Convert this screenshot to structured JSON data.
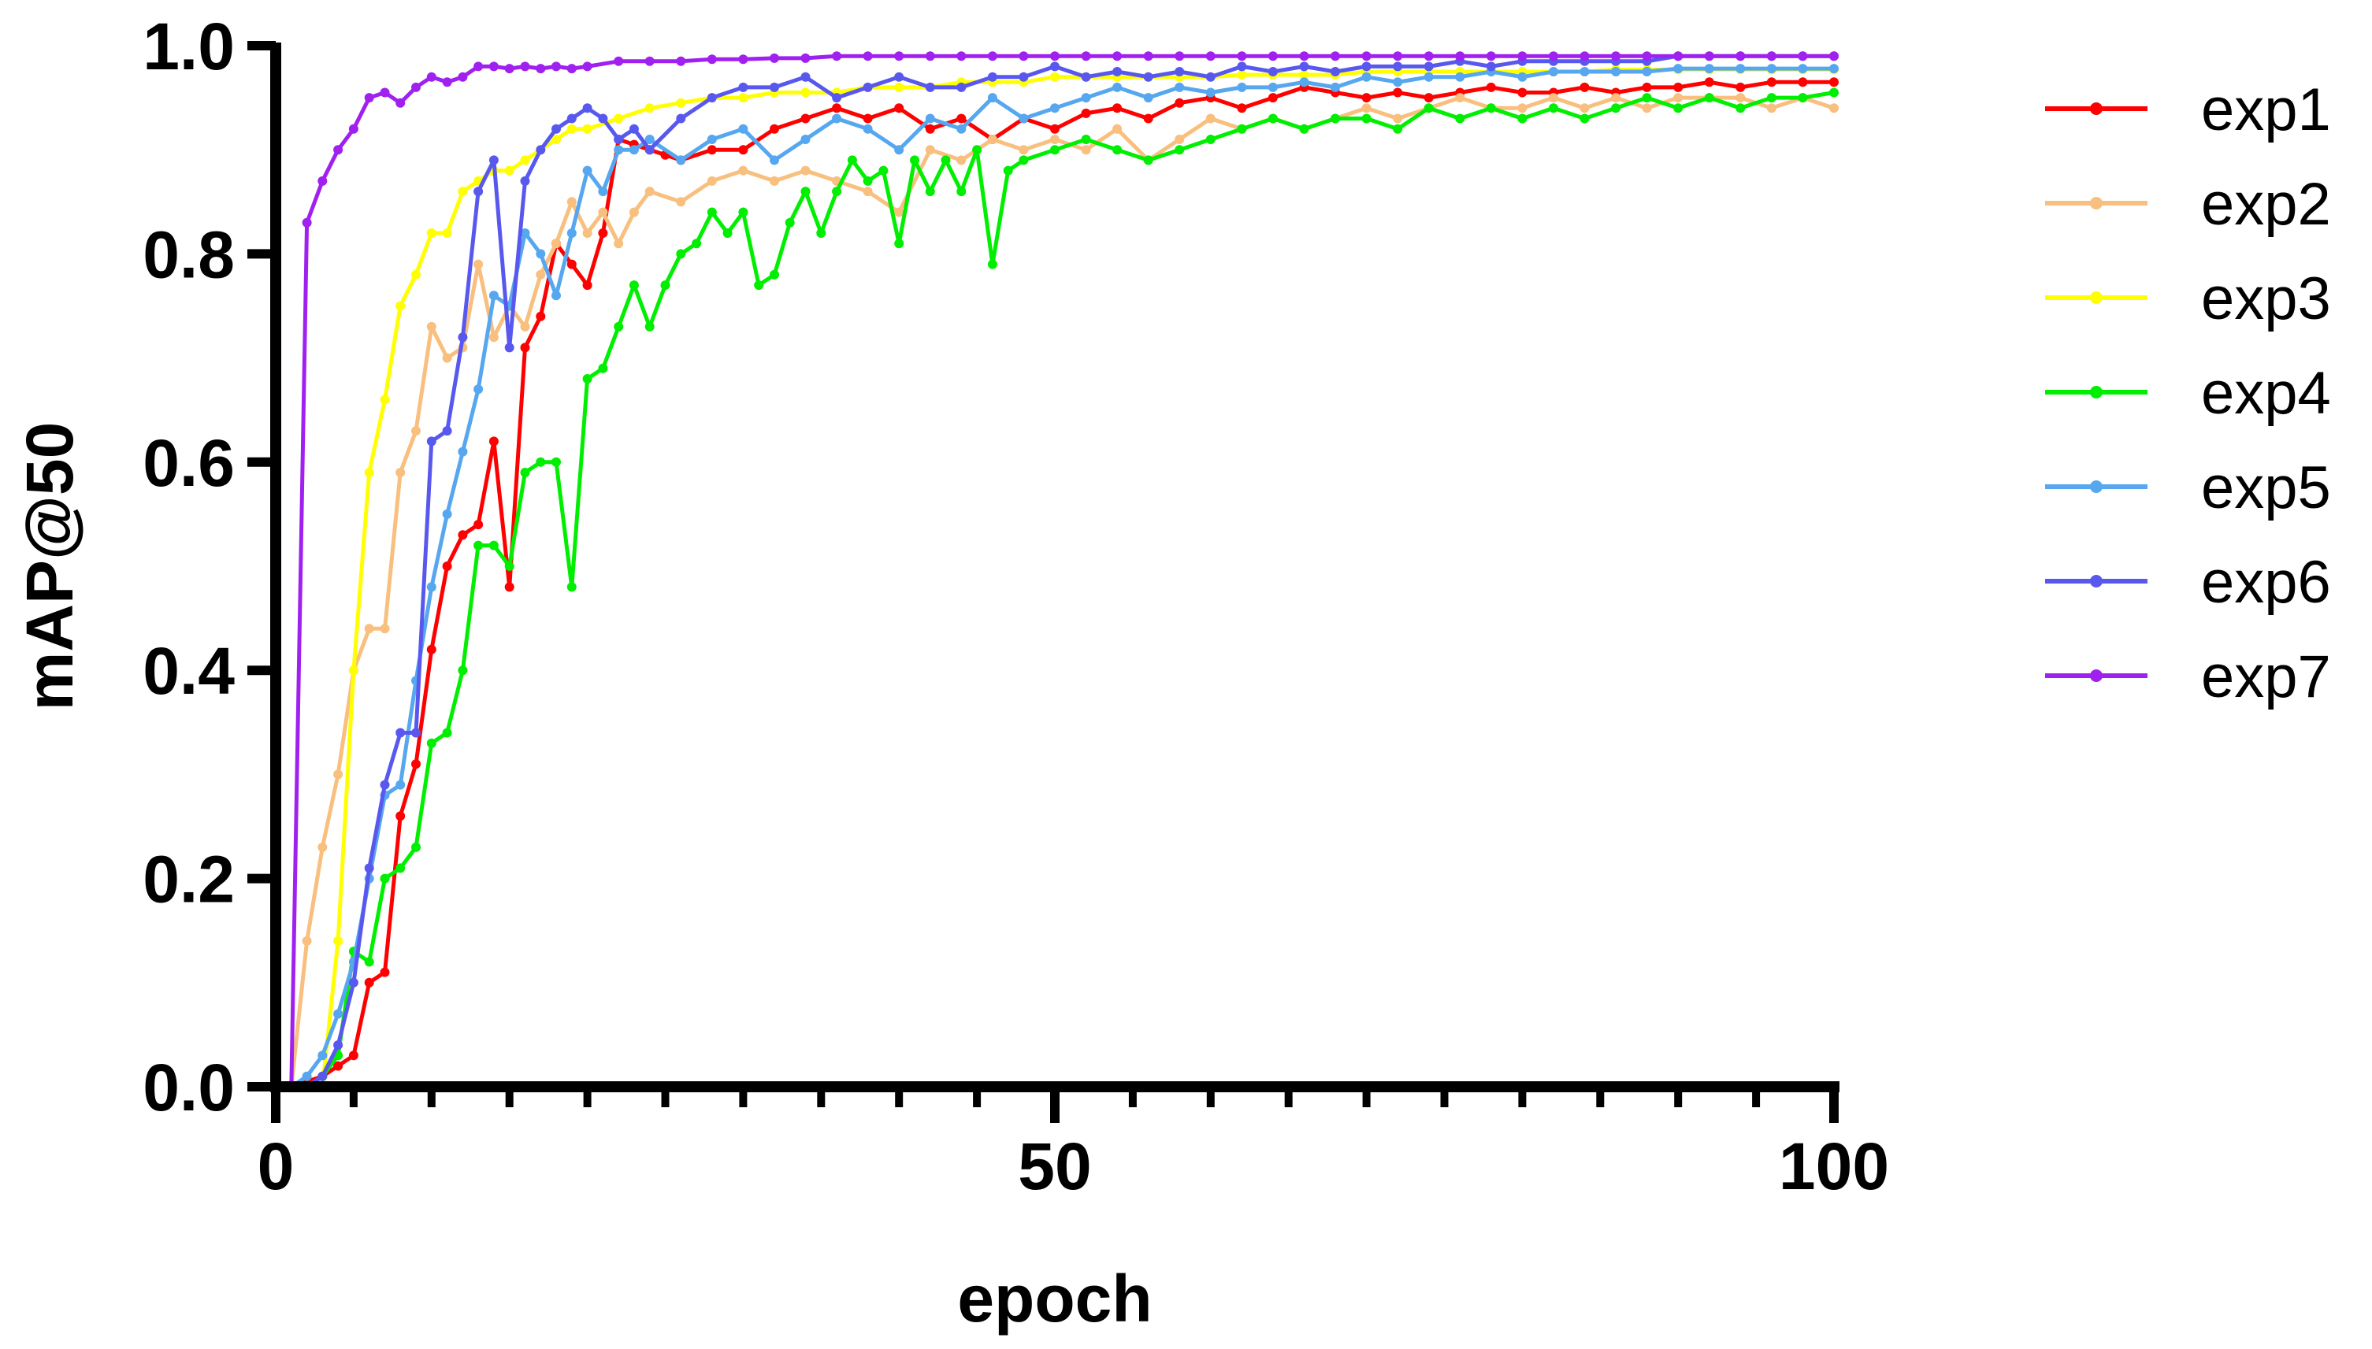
{
  "chart_data": {
    "type": "line",
    "title": "",
    "xlabel": "epoch",
    "ylabel": "mAP@50",
    "xlim": [
      0,
      100
    ],
    "ylim": [
      0,
      1.0
    ],
    "x_ticks": [
      0,
      50,
      100
    ],
    "x_tick_labels": [
      "0",
      "50",
      "100"
    ],
    "y_ticks": [
      0,
      0.2,
      0.4,
      0.6,
      0.8,
      1.0
    ],
    "y_tick_labels": [
      "0.0",
      "0.2",
      "0.4",
      "0.6",
      "0.8",
      "1.0"
    ],
    "grid": false,
    "legend_position": "right",
    "series": [
      {
        "name": "exp1",
        "color": "#ff0000",
        "x": [
          1,
          2,
          3,
          4,
          5,
          6,
          7,
          8,
          9,
          10,
          11,
          12,
          13,
          14,
          15,
          16,
          17,
          18,
          19,
          20,
          21,
          22,
          23,
          24,
          25,
          26,
          28,
          30,
          32,
          34,
          36,
          38,
          40,
          42,
          44,
          46,
          48,
          50,
          52,
          54,
          56,
          58,
          60,
          62,
          64,
          66,
          68,
          70,
          72,
          74,
          76,
          78,
          80,
          82,
          84,
          86,
          88,
          90,
          92,
          94,
          96,
          98,
          100
        ],
        "values": [
          0.0,
          0.005,
          0.01,
          0.02,
          0.03,
          0.1,
          0.11,
          0.26,
          0.31,
          0.42,
          0.5,
          0.53,
          0.54,
          0.62,
          0.48,
          0.71,
          0.74,
          0.81,
          0.79,
          0.77,
          0.82,
          0.91,
          0.905,
          0.9,
          0.895,
          0.89,
          0.9,
          0.9,
          0.92,
          0.93,
          0.94,
          0.93,
          0.94,
          0.92,
          0.93,
          0.91,
          0.93,
          0.92,
          0.935,
          0.94,
          0.93,
          0.945,
          0.95,
          0.94,
          0.95,
          0.96,
          0.955,
          0.95,
          0.955,
          0.95,
          0.955,
          0.96,
          0.955,
          0.955,
          0.96,
          0.955,
          0.96,
          0.96,
          0.965,
          0.96,
          0.965,
          0.965,
          0.965
        ]
      },
      {
        "name": "exp2",
        "color": "#f8bf7f",
        "x": [
          1,
          2,
          3,
          4,
          5,
          6,
          7,
          8,
          9,
          10,
          11,
          12,
          13,
          14,
          15,
          16,
          17,
          18,
          19,
          20,
          21,
          22,
          23,
          24,
          26,
          28,
          30,
          32,
          34,
          36,
          38,
          40,
          42,
          44,
          46,
          48,
          50,
          52,
          54,
          56,
          58,
          60,
          62,
          64,
          66,
          68,
          70,
          72,
          74,
          76,
          78,
          80,
          82,
          84,
          86,
          88,
          90,
          92,
          94,
          96,
          98,
          100
        ],
        "values": [
          0.0,
          0.14,
          0.23,
          0.3,
          0.4,
          0.44,
          0.44,
          0.59,
          0.63,
          0.73,
          0.7,
          0.71,
          0.79,
          0.72,
          0.75,
          0.73,
          0.78,
          0.81,
          0.85,
          0.82,
          0.84,
          0.81,
          0.84,
          0.86,
          0.85,
          0.87,
          0.88,
          0.87,
          0.88,
          0.87,
          0.86,
          0.84,
          0.9,
          0.89,
          0.91,
          0.9,
          0.91,
          0.9,
          0.92,
          0.89,
          0.91,
          0.93,
          0.92,
          0.93,
          0.92,
          0.93,
          0.94,
          0.93,
          0.94,
          0.95,
          0.94,
          0.94,
          0.95,
          0.94,
          0.95,
          0.94,
          0.95,
          0.95,
          0.95,
          0.94,
          0.95,
          0.94
        ]
      },
      {
        "name": "exp3",
        "color": "#ffff00",
        "x": [
          1,
          2,
          3,
          4,
          5,
          6,
          7,
          8,
          9,
          10,
          11,
          12,
          13,
          14,
          15,
          16,
          17,
          18,
          19,
          20,
          22,
          24,
          26,
          28,
          30,
          32,
          34,
          36,
          38,
          40,
          42,
          44,
          46,
          48,
          50,
          52,
          54,
          56,
          58,
          60,
          62,
          64,
          66,
          68,
          70,
          72,
          74,
          76,
          78,
          80,
          82,
          84,
          86,
          88,
          90,
          92,
          94,
          96,
          98,
          100
        ],
        "values": [
          0.0,
          0.0,
          0.0,
          0.14,
          0.4,
          0.59,
          0.66,
          0.75,
          0.78,
          0.82,
          0.82,
          0.86,
          0.87,
          0.88,
          0.88,
          0.89,
          0.9,
          0.91,
          0.92,
          0.92,
          0.93,
          0.94,
          0.945,
          0.95,
          0.95,
          0.955,
          0.955,
          0.955,
          0.96,
          0.96,
          0.96,
          0.965,
          0.965,
          0.965,
          0.97,
          0.97,
          0.97,
          0.97,
          0.97,
          0.97,
          0.972,
          0.972,
          0.972,
          0.972,
          0.975,
          0.975,
          0.975,
          0.975,
          0.975,
          0.975,
          0.975,
          0.975,
          0.977,
          0.977,
          0.977,
          0.977,
          0.977,
          0.977,
          0.977,
          0.977
        ]
      },
      {
        "name": "exp4",
        "color": "#00ee00",
        "x": [
          1,
          2,
          3,
          4,
          5,
          6,
          7,
          8,
          9,
          10,
          11,
          12,
          13,
          14,
          15,
          16,
          17,
          18,
          19,
          20,
          21,
          22,
          23,
          24,
          25,
          26,
          27,
          28,
          29,
          30,
          31,
          32,
          33,
          34,
          35,
          36,
          37,
          38,
          39,
          40,
          41,
          42,
          43,
          44,
          45,
          46,
          47,
          48,
          50,
          52,
          54,
          56,
          58,
          60,
          62,
          64,
          66,
          68,
          70,
          72,
          74,
          76,
          78,
          80,
          82,
          84,
          86,
          88,
          90,
          92,
          94,
          96,
          98,
          100
        ],
        "values": [
          0.0,
          0.0,
          0.01,
          0.03,
          0.13,
          0.12,
          0.2,
          0.21,
          0.23,
          0.33,
          0.34,
          0.4,
          0.52,
          0.52,
          0.5,
          0.59,
          0.6,
          0.6,
          0.48,
          0.68,
          0.69,
          0.73,
          0.77,
          0.73,
          0.77,
          0.8,
          0.81,
          0.84,
          0.82,
          0.84,
          0.77,
          0.78,
          0.83,
          0.86,
          0.82,
          0.86,
          0.89,
          0.87,
          0.88,
          0.81,
          0.89,
          0.86,
          0.89,
          0.86,
          0.9,
          0.79,
          0.88,
          0.89,
          0.9,
          0.91,
          0.9,
          0.89,
          0.9,
          0.91,
          0.92,
          0.93,
          0.92,
          0.93,
          0.93,
          0.92,
          0.94,
          0.93,
          0.94,
          0.93,
          0.94,
          0.93,
          0.94,
          0.95,
          0.94,
          0.95,
          0.94,
          0.95,
          0.95,
          0.955
        ]
      },
      {
        "name": "exp5",
        "color": "#56a7ef",
        "x": [
          1,
          2,
          3,
          4,
          5,
          6,
          7,
          8,
          9,
          10,
          11,
          12,
          13,
          14,
          15,
          16,
          17,
          18,
          19,
          20,
          21,
          22,
          23,
          24,
          26,
          28,
          30,
          32,
          34,
          36,
          38,
          40,
          42,
          44,
          46,
          48,
          50,
          52,
          54,
          56,
          58,
          60,
          62,
          64,
          66,
          68,
          70,
          72,
          74,
          76,
          78,
          80,
          82,
          84,
          86,
          88,
          90,
          92,
          94,
          96,
          98,
          100
        ],
        "values": [
          0.0,
          0.01,
          0.03,
          0.07,
          0.12,
          0.2,
          0.28,
          0.29,
          0.39,
          0.48,
          0.55,
          0.61,
          0.67,
          0.76,
          0.75,
          0.82,
          0.8,
          0.76,
          0.82,
          0.88,
          0.86,
          0.9,
          0.9,
          0.91,
          0.89,
          0.91,
          0.92,
          0.89,
          0.91,
          0.93,
          0.92,
          0.9,
          0.93,
          0.92,
          0.95,
          0.93,
          0.94,
          0.95,
          0.96,
          0.95,
          0.96,
          0.955,
          0.96,
          0.96,
          0.965,
          0.96,
          0.97,
          0.965,
          0.97,
          0.97,
          0.975,
          0.97,
          0.975,
          0.975,
          0.975,
          0.975,
          0.978,
          0.978,
          0.978,
          0.978,
          0.978,
          0.978
        ]
      },
      {
        "name": "exp6",
        "color": "#5858ef",
        "x": [
          1,
          2,
          3,
          4,
          5,
          6,
          7,
          8,
          9,
          10,
          11,
          12,
          13,
          14,
          15,
          16,
          17,
          18,
          19,
          20,
          21,
          22,
          23,
          24,
          26,
          28,
          30,
          32,
          34,
          36,
          38,
          40,
          42,
          44,
          46,
          48,
          50,
          52,
          54,
          56,
          58,
          60,
          62,
          64,
          66,
          68,
          70,
          72,
          74,
          76,
          78,
          80,
          82,
          84,
          86,
          88,
          90,
          92,
          94,
          96,
          98,
          100
        ],
        "values": [
          0.0,
          0.0,
          0.01,
          0.04,
          0.1,
          0.21,
          0.29,
          0.34,
          0.34,
          0.62,
          0.63,
          0.72,
          0.86,
          0.89,
          0.71,
          0.87,
          0.9,
          0.92,
          0.93,
          0.94,
          0.93,
          0.91,
          0.92,
          0.9,
          0.93,
          0.95,
          0.96,
          0.96,
          0.97,
          0.95,
          0.96,
          0.97,
          0.96,
          0.96,
          0.97,
          0.97,
          0.98,
          0.97,
          0.975,
          0.97,
          0.975,
          0.97,
          0.98,
          0.975,
          0.98,
          0.975,
          0.98,
          0.98,
          0.98,
          0.985,
          0.98,
          0.985,
          0.985,
          0.985,
          0.985,
          0.985,
          0.99,
          0.99,
          0.99,
          0.99,
          0.99,
          0.99
        ]
      },
      {
        "name": "exp7",
        "color": "#a020f0",
        "x": [
          1,
          2,
          3,
          4,
          5,
          6,
          7,
          8,
          9,
          10,
          11,
          12,
          13,
          14,
          15,
          16,
          17,
          18,
          19,
          20,
          22,
          24,
          26,
          28,
          30,
          32,
          34,
          36,
          38,
          40,
          42,
          44,
          46,
          48,
          50,
          52,
          54,
          56,
          58,
          60,
          62,
          64,
          66,
          68,
          70,
          72,
          74,
          76,
          78,
          80,
          82,
          84,
          86,
          88,
          90,
          92,
          94,
          96,
          98,
          100
        ],
        "values": [
          0.0,
          0.83,
          0.87,
          0.9,
          0.92,
          0.95,
          0.955,
          0.945,
          0.96,
          0.97,
          0.965,
          0.97,
          0.98,
          0.98,
          0.978,
          0.98,
          0.978,
          0.98,
          0.978,
          0.98,
          0.985,
          0.985,
          0.985,
          0.987,
          0.987,
          0.988,
          0.988,
          0.99,
          0.99,
          0.99,
          0.99,
          0.99,
          0.99,
          0.99,
          0.99,
          0.99,
          0.99,
          0.99,
          0.99,
          0.99,
          0.99,
          0.99,
          0.99,
          0.99,
          0.99,
          0.99,
          0.99,
          0.99,
          0.99,
          0.99,
          0.99,
          0.99,
          0.99,
          0.99,
          0.99,
          0.99,
          0.99,
          0.99,
          0.99,
          0.99
        ]
      }
    ]
  }
}
